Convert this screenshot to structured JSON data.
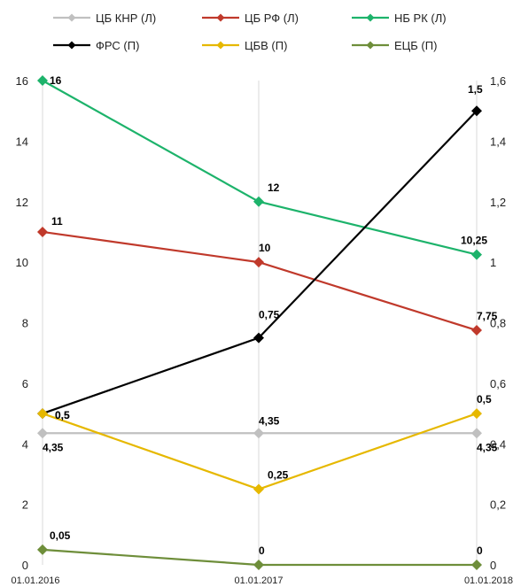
{
  "chart_data": {
    "type": "line",
    "x": [
      "01.01.2016",
      "01.01.2017",
      "01.01.2018"
    ],
    "left_ylim": [
      0,
      16
    ],
    "left_yticks": [
      0,
      2,
      4,
      6,
      8,
      10,
      12,
      14,
      16
    ],
    "right_ylim": [
      0,
      1.6
    ],
    "right_yticks": [
      "0",
      "0,2",
      "0,4",
      "0,6",
      "0,8",
      "1",
      "1,2",
      "1,4",
      "1,6"
    ],
    "legend_position": "top",
    "series": [
      {
        "name": "ЦБ КНР (Л)",
        "axis": "left",
        "color": "#c0c0c0",
        "values": [
          4.35,
          4.35,
          4.35
        ],
        "labels": [
          "4,35",
          "4,35",
          "4,35"
        ]
      },
      {
        "name": "ЦБ РФ (Л)",
        "axis": "left",
        "color": "#c0392b",
        "values": [
          11,
          10,
          7.75
        ],
        "labels": [
          "11",
          "10",
          "7,75"
        ]
      },
      {
        "name": "НБ РК (Л)",
        "axis": "left",
        "color": "#1db36b",
        "values": [
          16,
          12,
          10.25
        ],
        "labels": [
          "16",
          "12",
          "10,25"
        ]
      },
      {
        "name": "ФРС (П)",
        "axis": "right",
        "color": "#000000",
        "values": [
          0.5,
          0.75,
          1.5
        ],
        "labels": [
          "0,5",
          "0,75",
          "1,5"
        ]
      },
      {
        "name": "ЦБВ (П)",
        "axis": "right",
        "color": "#e6b800",
        "values": [
          0.5,
          0.25,
          0.5
        ],
        "labels": [
          "0,5",
          "0,25",
          "0,5"
        ]
      },
      {
        "name": "ЕЦБ (П)",
        "axis": "right",
        "color": "#6e8e3a",
        "values": [
          0.05,
          0,
          0
        ],
        "labels": [
          "0,05",
          "0",
          "0"
        ]
      }
    ]
  }
}
